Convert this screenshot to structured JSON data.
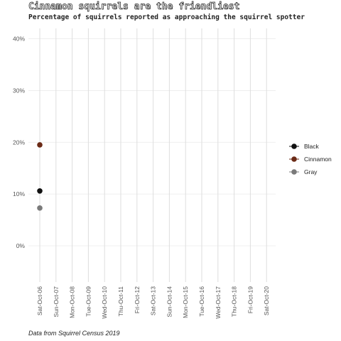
{
  "chart_data": {
    "type": "scatter",
    "title": "Cinnamon squirrels are the friendliest",
    "subtitle": "Percentage of squirrels reported as approaching the squirrel spotter",
    "caption": "Data from Squirrel Census 2019",
    "xlabel": "",
    "ylabel": "",
    "categories": [
      "Sat-Oct-06",
      "Sun-Oct-07",
      "Mon-Oct-08",
      "Tue-Oct-09",
      "Wed-Oct-10",
      "Thu-Oct-11",
      "Fri-Oct-12",
      "Sat-Oct-13",
      "Sun-Oct-14",
      "Mon-Oct-15",
      "Tue-Oct-16",
      "Wed-Oct-17",
      "Thu-Oct-18",
      "Fri-Oct-19",
      "Sat-Oct-20"
    ],
    "ylim": [
      -0.07,
      0.42
    ],
    "yticks": [
      0,
      0.1,
      0.2,
      0.3,
      0.4
    ],
    "ytick_labels": [
      "0%",
      "10%",
      "20%",
      "30%",
      "40%"
    ],
    "grid": true,
    "legend_position": "right",
    "series": [
      {
        "name": "Black",
        "color": "#111111",
        "points": [
          {
            "x": "Sat-Oct-06",
            "y": 0.106
          }
        ]
      },
      {
        "name": "Cinnamon",
        "color": "#6b2a16",
        "points": [
          {
            "x": "Sat-Oct-06",
            "y": 0.195
          }
        ]
      },
      {
        "name": "Gray",
        "color": "#7a7a7a",
        "points": [
          {
            "x": "Sat-Oct-06",
            "y": 0.073
          }
        ]
      }
    ]
  }
}
